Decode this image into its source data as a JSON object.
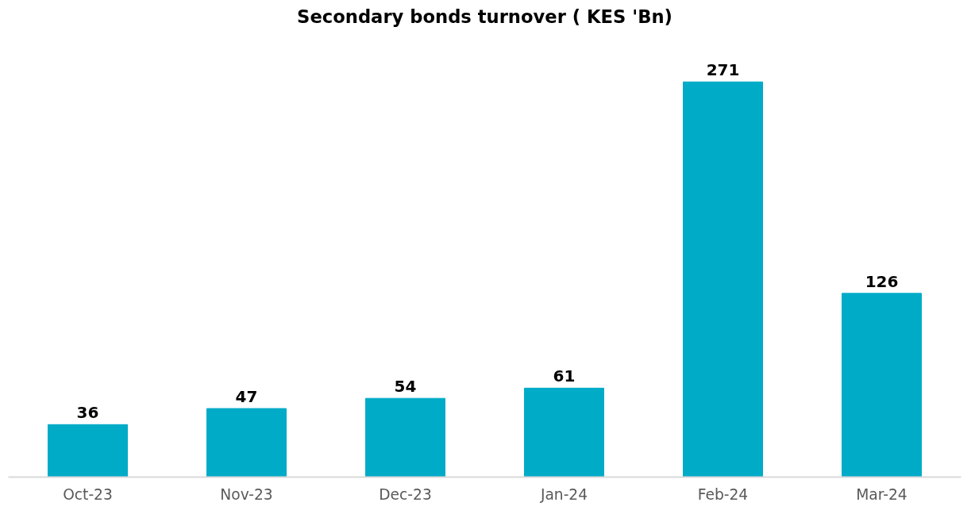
{
  "chart_data": {
    "type": "bar",
    "title": "Secondary bonds turnover ( KES 'Bn)",
    "categories": [
      "Oct-23",
      "Nov-23",
      "Dec-23",
      "Jan-24",
      "Feb-24",
      "Mar-24"
    ],
    "values": [
      36,
      47,
      54,
      61,
      271,
      126
    ],
    "color": "#00abc7",
    "data_labels": true
  }
}
